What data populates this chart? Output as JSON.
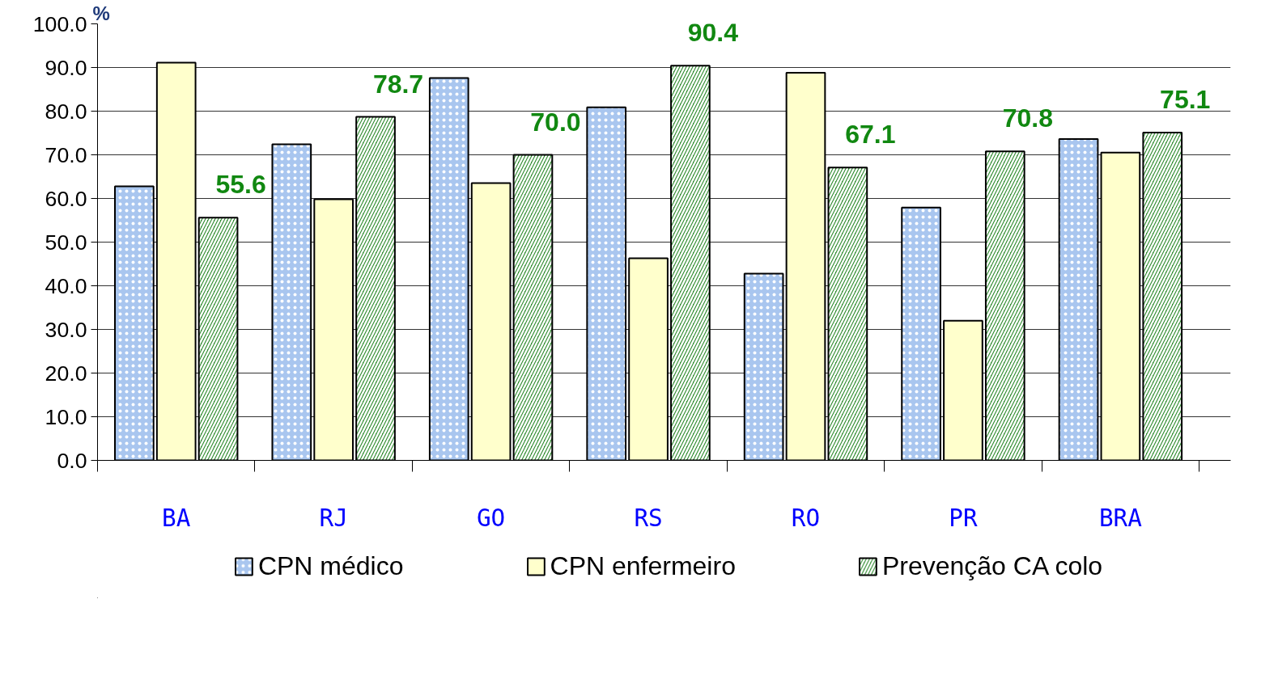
{
  "chart_data": {
    "type": "bar",
    "ylabel": "%",
    "categories": [
      "BA",
      "RJ",
      "GO",
      "RS",
      "RO",
      "PR",
      "BRA"
    ],
    "series": [
      {
        "name": "CPN médico",
        "color": "#a9c6ef",
        "values": [
          62.8,
          72.4,
          87.6,
          80.9,
          42.8,
          57.9,
          73.6
        ]
      },
      {
        "name": "CPN enfermeiro",
        "color": "#ffffcc",
        "values": [
          91.1,
          59.8,
          63.5,
          46.3,
          88.8,
          32.0,
          70.5
        ]
      },
      {
        "name": "Prevenção CA colo",
        "color": "#2e8b2e",
        "values": [
          55.6,
          78.7,
          70.0,
          90.4,
          67.1,
          70.8,
          75.1
        ],
        "value_labels": [
          "55.6",
          "78.7",
          "70.0",
          "90.4",
          "67.1",
          "70.8",
          "75.1"
        ]
      }
    ],
    "ylim": [
      0,
      100
    ],
    "yticks": [
      {
        "value": 0,
        "label": "0.0"
      },
      {
        "value": 10,
        "label": "10.0"
      },
      {
        "value": 20,
        "label": "20.0"
      },
      {
        "value": 30,
        "label": "30.0"
      },
      {
        "value": 40,
        "label": "40.0"
      },
      {
        "value": 50,
        "label": "50.0"
      },
      {
        "value": 60,
        "label": "60.0"
      },
      {
        "value": 70,
        "label": "70.0"
      },
      {
        "value": 80,
        "label": "80.0"
      },
      {
        "value": 90,
        "label": "90.0"
      },
      {
        "value": 100,
        "label": "100.0"
      }
    ],
    "grid": "y",
    "legend": "bottom"
  }
}
